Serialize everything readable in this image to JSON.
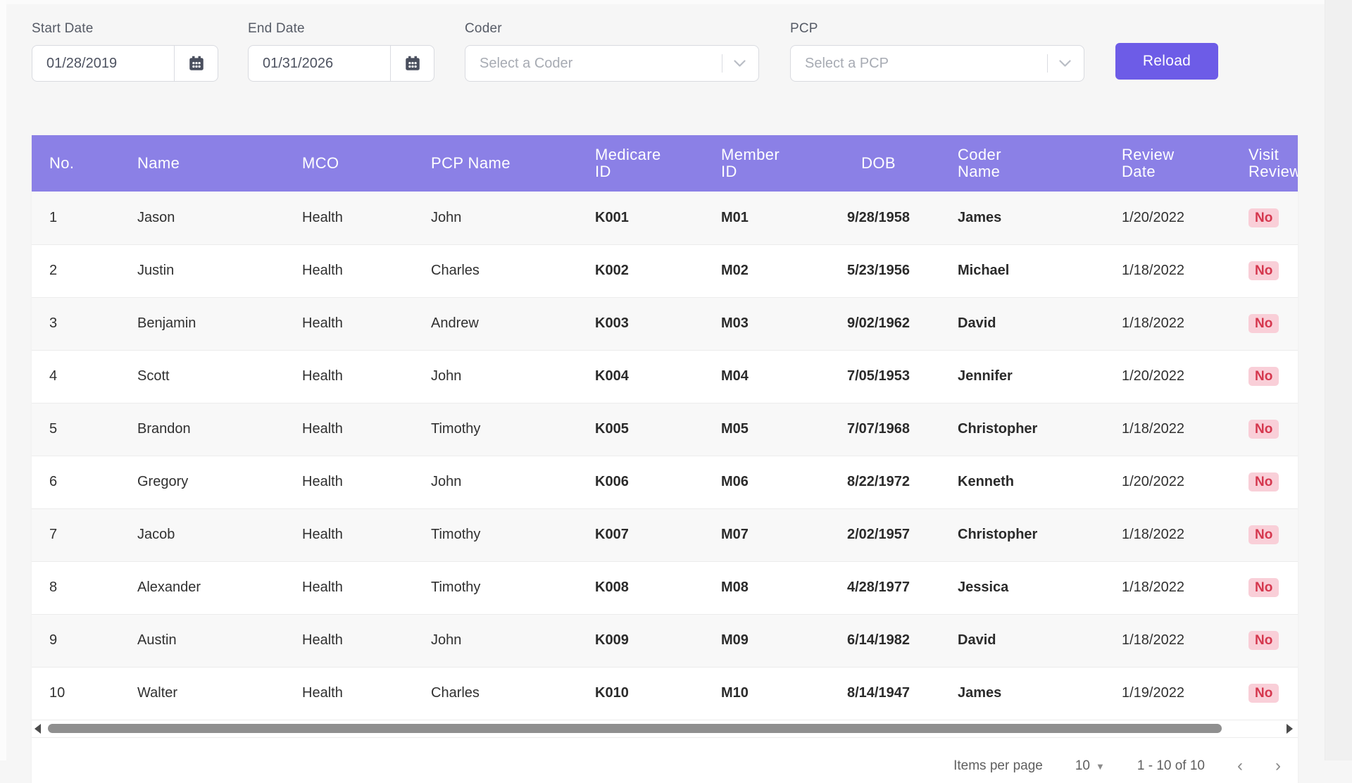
{
  "filters": {
    "start_date": {
      "label": "Start Date",
      "value": "01/28/2019"
    },
    "end_date": {
      "label": "End Date",
      "value": "01/31/2026"
    },
    "coder": {
      "label": "Coder",
      "placeholder": "Select a Coder"
    },
    "pcp": {
      "label": "PCP",
      "placeholder": "Select a PCP"
    },
    "reload_label": "Reload"
  },
  "table": {
    "columns": [
      "No.",
      "Name",
      "MCO",
      "PCP Name",
      "Medicare\nID",
      "Member\nID",
      "DOB",
      "Coder\nName",
      "Review\nDate",
      "Visit\nReviewed"
    ],
    "rows": [
      {
        "no": "1",
        "name": "Jason",
        "mco": "Health",
        "pcp_name": "John",
        "medicare_id": "K001",
        "member_id": "M01",
        "dob": "9/28/1958",
        "coder_name": "James",
        "review_date": "1/20/2022",
        "visit_reviewed": "No"
      },
      {
        "no": "2",
        "name": "Justin",
        "mco": "Health",
        "pcp_name": "Charles",
        "medicare_id": "K002",
        "member_id": "M02",
        "dob": "5/23/1956",
        "coder_name": "Michael",
        "review_date": "1/18/2022",
        "visit_reviewed": "No"
      },
      {
        "no": "3",
        "name": "Benjamin",
        "mco": "Health",
        "pcp_name": "Andrew",
        "medicare_id": "K003",
        "member_id": "M03",
        "dob": "9/02/1962",
        "coder_name": "David",
        "review_date": "1/18/2022",
        "visit_reviewed": "No"
      },
      {
        "no": "4",
        "name": "Scott",
        "mco": "Health",
        "pcp_name": "John",
        "medicare_id": "K004",
        "member_id": "M04",
        "dob": "7/05/1953",
        "coder_name": "Jennifer",
        "review_date": "1/20/2022",
        "visit_reviewed": "No"
      },
      {
        "no": "5",
        "name": "Brandon",
        "mco": "Health",
        "pcp_name": "Timothy",
        "medicare_id": "K005",
        "member_id": "M05",
        "dob": "7/07/1968",
        "coder_name": "Christopher",
        "review_date": "1/18/2022",
        "visit_reviewed": "No"
      },
      {
        "no": "6",
        "name": "Gregory",
        "mco": "Health",
        "pcp_name": "John",
        "medicare_id": "K006",
        "member_id": "M06",
        "dob": "8/22/1972",
        "coder_name": "Kenneth",
        "review_date": "1/20/2022",
        "visit_reviewed": "No"
      },
      {
        "no": "7",
        "name": "Jacob",
        "mco": "Health",
        "pcp_name": "Timothy",
        "medicare_id": "K007",
        "member_id": "M07",
        "dob": "2/02/1957",
        "coder_name": "Christopher",
        "review_date": "1/18/2022",
        "visit_reviewed": "No"
      },
      {
        "no": "8",
        "name": "Alexander",
        "mco": "Health",
        "pcp_name": "Timothy",
        "medicare_id": "K008",
        "member_id": "M08",
        "dob": "4/28/1977",
        "coder_name": "Jessica",
        "review_date": "1/18/2022",
        "visit_reviewed": "No"
      },
      {
        "no": "9",
        "name": "Austin",
        "mco": "Health",
        "pcp_name": "John",
        "medicare_id": "K009",
        "member_id": "M09",
        "dob": "6/14/1982",
        "coder_name": "David",
        "review_date": "1/18/2022",
        "visit_reviewed": "No"
      },
      {
        "no": "10",
        "name": "Walter",
        "mco": "Health",
        "pcp_name": "Charles",
        "medicare_id": "K010",
        "member_id": "M10",
        "dob": "8/14/1947",
        "coder_name": "James",
        "review_date": "1/19/2022",
        "visit_reviewed": "No"
      }
    ]
  },
  "pagination": {
    "items_per_page_label": "Items per page",
    "items_per_page": "10",
    "range": "1 - 10 of 10",
    "prev": "‹",
    "next": "›"
  },
  "colors": {
    "accent": "#6d5ce7",
    "table_header": "#8b80e6",
    "badge_bg": "#f9cfd8",
    "badge_text": "#d5374e"
  }
}
